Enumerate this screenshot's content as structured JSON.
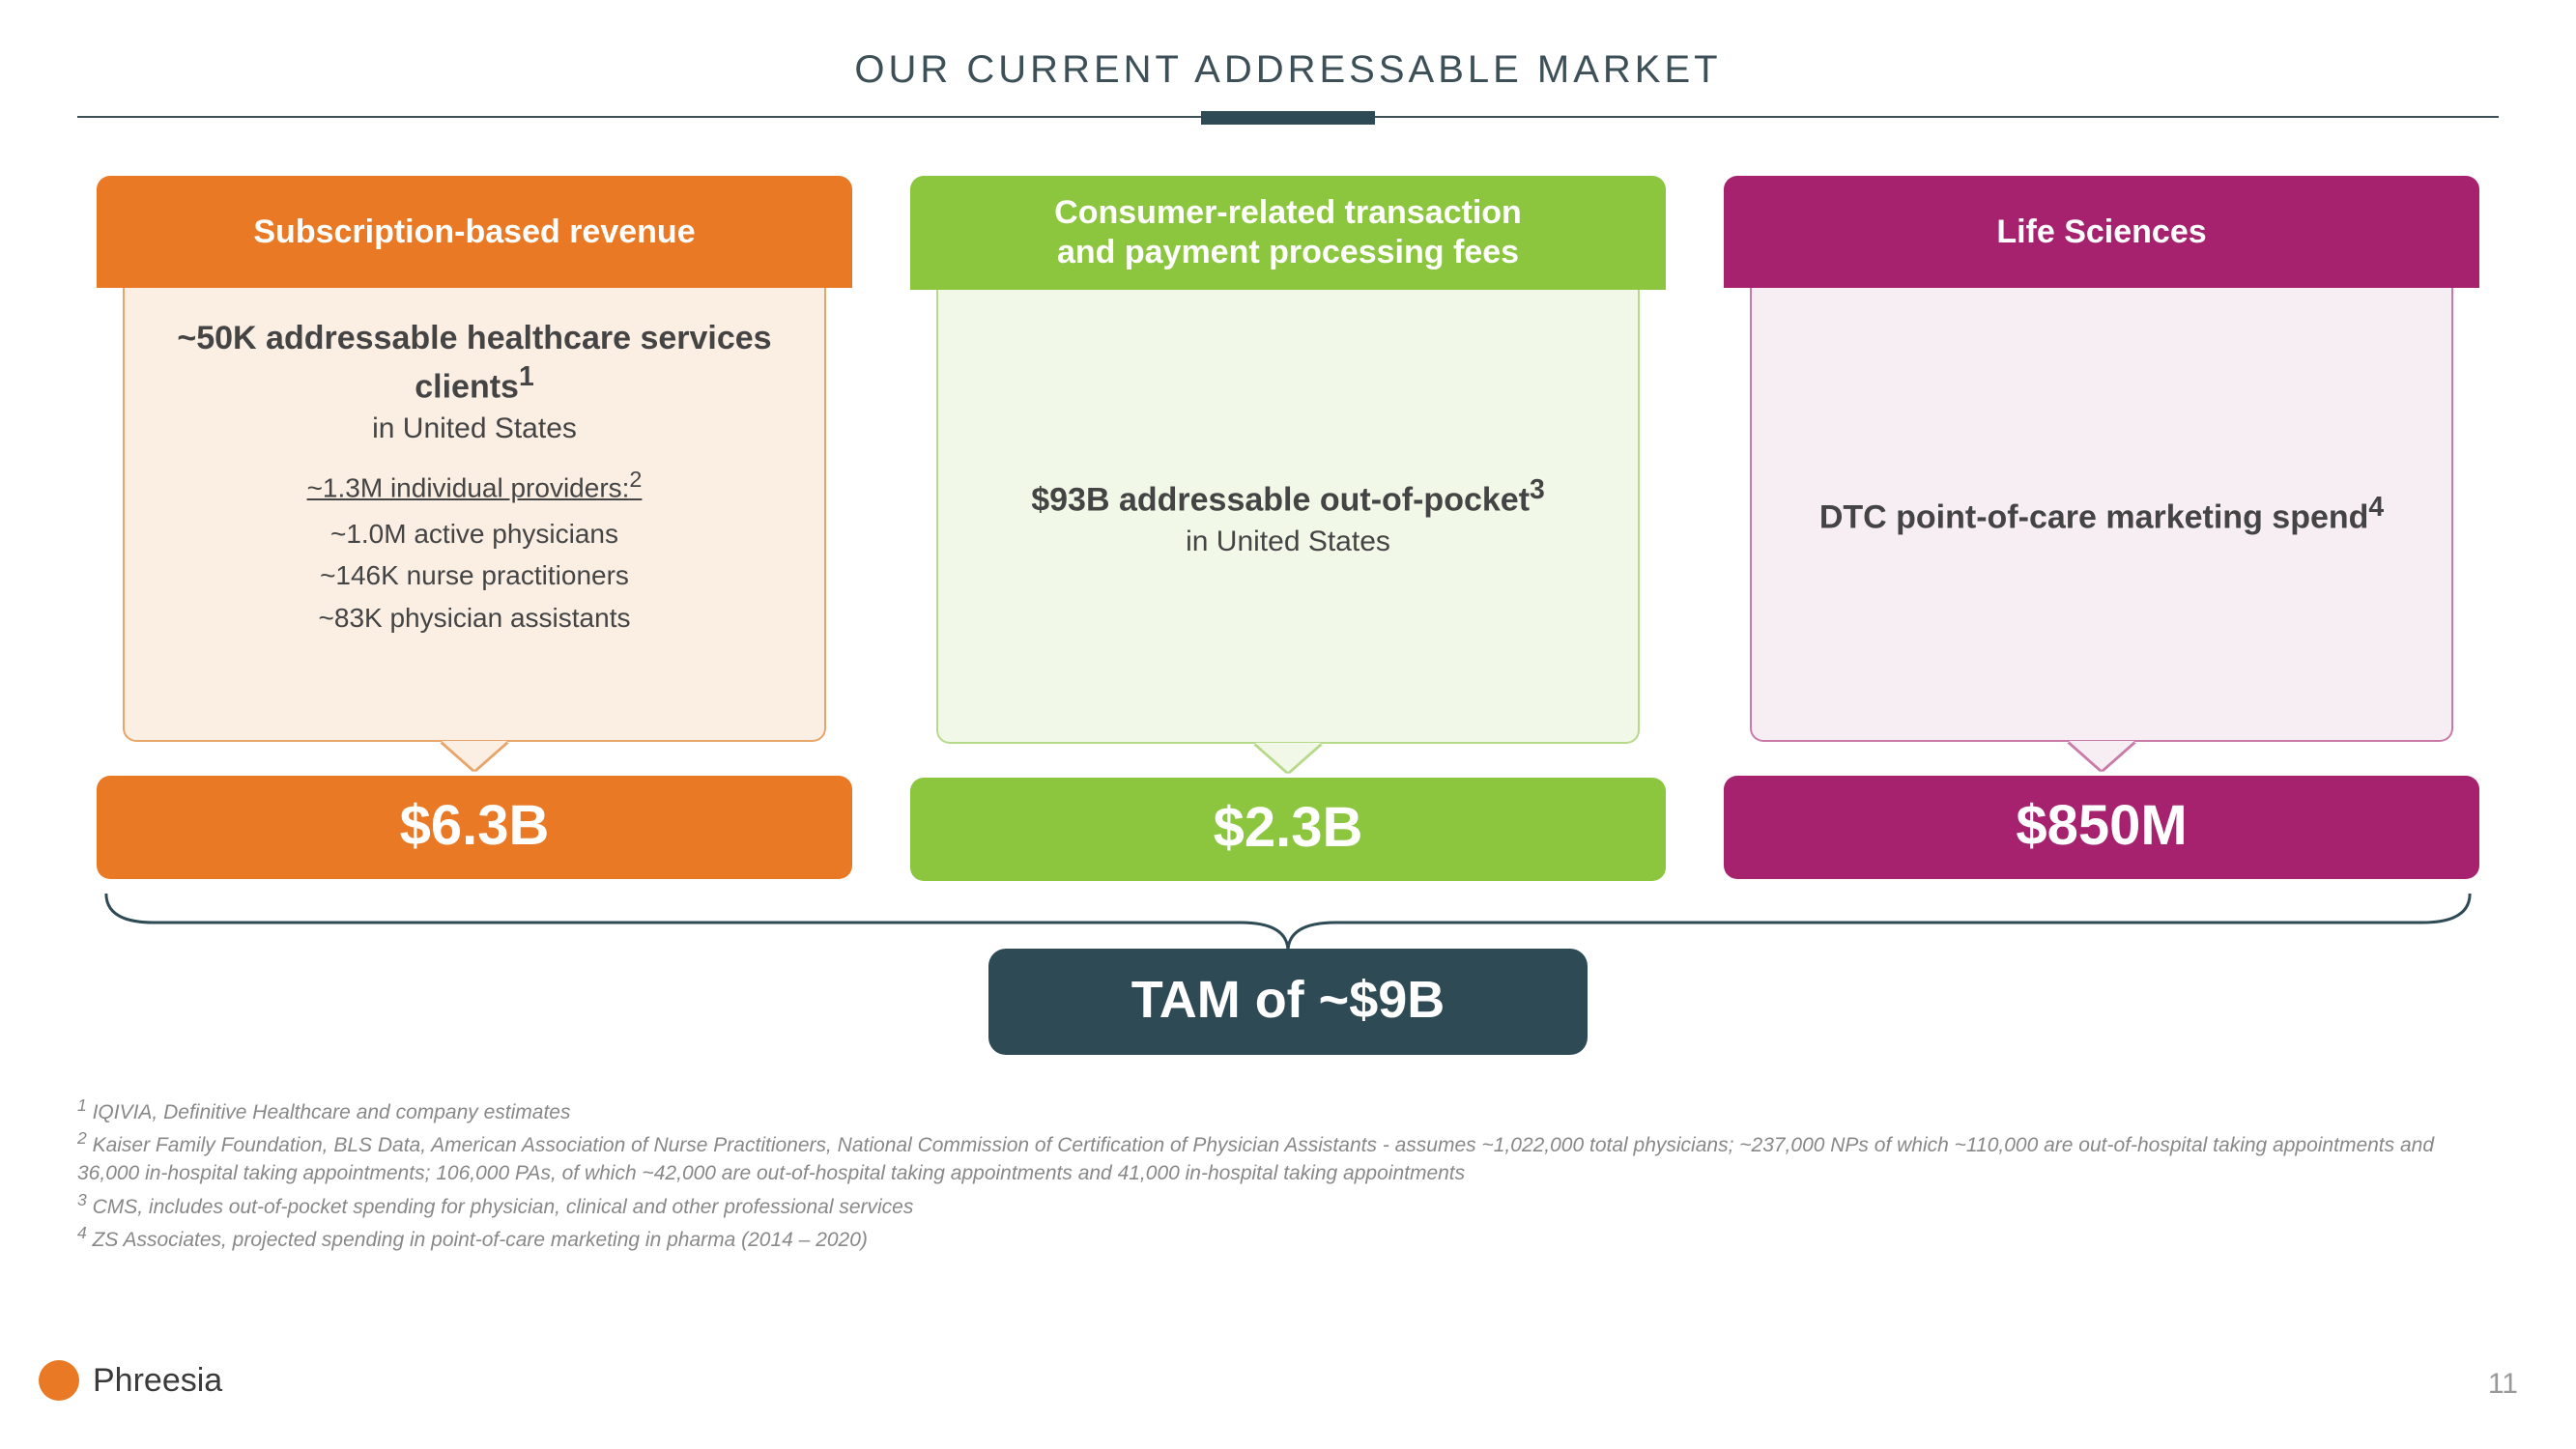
{
  "title": "OUR CURRENT ADDRESSABLE MARKET",
  "title_fontsize": 40,
  "colors": {
    "orange": "#e97925",
    "orange_tint": "#fbeee3",
    "orange_border": "#e8a56a",
    "green": "#8cc63f",
    "green_tint": "#f2f8e8",
    "green_border": "#b6d98a",
    "magenta": "#a6226f",
    "magenta_tint": "#f7eef3",
    "magenta_border": "#c97aa6",
    "slate": "#2e4a55",
    "text": "#444444",
    "footnote": "#888888",
    "brand_orange": "#e97925"
  },
  "header_fontsize": 34,
  "headline_fontsize": 34,
  "sub_fontsize": 30,
  "list_fontsize": 28,
  "value_fontsize": 58,
  "tam_fontsize": 54,
  "footnote_fontsize": 21,
  "cards": [
    {
      "header_line1": "Subscription-based revenue",
      "header_line2": "",
      "headline": "~50K addressable healthcare services clients",
      "headline_sup": "1",
      "sub": "in United States",
      "providers_title": "~1.3M individual providers:",
      "providers_title_sup": "2",
      "providers": [
        "~1.0M active physicians",
        "~146K nurse practitioners",
        "~83K physician assistants"
      ],
      "value": "$6.3B"
    },
    {
      "header_line1": "Consumer-related transaction",
      "header_line2": "and payment processing fees",
      "headline": "$93B addressable out-of-pocket",
      "headline_sup": "3",
      "sub": "in United States",
      "value": "$2.3B"
    },
    {
      "header_line1": "Life Sciences",
      "header_line2": "",
      "headline": "DTC point-of-care marketing spend",
      "headline_sup": "4",
      "sub": "",
      "value": "$850M"
    }
  ],
  "tam": "TAM of ~$9B",
  "footnotes": [
    {
      "n": "1",
      "text": "IQIVIA, Definitive Healthcare and company estimates"
    },
    {
      "n": "2",
      "text": "Kaiser Family Foundation, BLS Data, American Association of Nurse Practitioners, National Commission of Certification of Physician Assistants - assumes ~1,022,000 total physicians; ~237,000 NPs of which ~110,000 are out-of-hospital taking appointments and 36,000 in-hospital taking appointments; 106,000 PAs, of which ~42,000 are out-of-hospital taking appointments and 41,000 in-hospital taking appointments"
    },
    {
      "n": "3",
      "text": "CMS, includes out-of-pocket spending for physician, clinical and other professional services"
    },
    {
      "n": "4",
      "text": "ZS Associates, projected spending in point-of-care marketing in pharma (2014 – 2020)"
    }
  ],
  "brand": "Phreesia",
  "page_number": "11"
}
